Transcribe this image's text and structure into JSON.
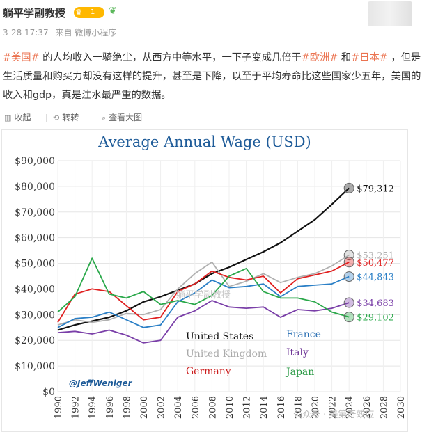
{
  "post": {
    "username": "躺平学副教授",
    "vip_level": "1",
    "time": "3-28 17:37",
    "source": "来自 微博小程序",
    "text_segments": [
      {
        "text": "#美国#",
        "type": "tag"
      },
      {
        "text": " 的人均收入一骑绝尘，从西方中等水平，一下子变成几倍于",
        "type": "plain"
      },
      {
        "text": "#欧洲#",
        "type": "tag"
      },
      {
        "text": " 和",
        "type": "plain"
      },
      {
        "text": "#日本#",
        "type": "tag"
      },
      {
        "text": " ，但是生活质量和购买力却没有这样的提升，甚至是下降，以至于平均寿命比这些国家少五年，美国的收入和gdp，真是注水最严重的数据。",
        "type": "plain"
      }
    ]
  },
  "actions": {
    "collapse": "收起",
    "repost": "转转",
    "view_large": "查看大图"
  },
  "icons": {
    "collapse": "collapse-icon",
    "repost": "repost-icon",
    "view_large": "view-large-icon",
    "sprout": "sprout-icon",
    "crown": "crown-icon"
  },
  "watermarks": {
    "center": "躺平学副教授",
    "bottom": "公众号 · 美第奇效应"
  },
  "chart_data": {
    "type": "line",
    "title": "Average Annual Wage (USD)",
    "credit": "@JeffWeniger",
    "x": [
      1990,
      1992,
      1994,
      1996,
      1998,
      2000,
      2002,
      2004,
      2006,
      2008,
      2010,
      2012,
      2014,
      2016,
      2018,
      2020,
      2022,
      2024
    ],
    "xticks": [
      "1990",
      "1992",
      "1994",
      "1996",
      "1998",
      "2000",
      "2002",
      "2004",
      "2006",
      "2008",
      "2010",
      "2012",
      "2014",
      "2016",
      "2018",
      "2020",
      "2022",
      "2024",
      "2026",
      "2028",
      "2030"
    ],
    "xlim": [
      1990,
      2030
    ],
    "ylim": [
      0,
      90000
    ],
    "yticks": [
      "$0",
      "$10,000",
      "$20,000",
      "$30,000",
      "$40,000",
      "$50,000",
      "$60,000",
      "$70,000",
      "$80,000",
      "$90,000"
    ],
    "legend": [
      "United States",
      "United Kingdom",
      "Germany",
      "France",
      "Italy",
      "Japan"
    ],
    "series": [
      {
        "name": "United States",
        "color": "#111111",
        "end_label": "$79,312",
        "end_value": 79312,
        "values": [
          24000,
          26000,
          27500,
          29000,
          31500,
          35000,
          37000,
          39500,
          42000,
          46000,
          48500,
          51500,
          54500,
          58000,
          62500,
          67000,
          73000,
          79312
        ]
      },
      {
        "name": "United Kingdom",
        "color": "#b0b0b0",
        "end_label": "$53,251",
        "end_value": 53251,
        "values": [
          26000,
          28000,
          27000,
          28000,
          30500,
          30000,
          32000,
          40000,
          46000,
          50500,
          41000,
          43000,
          46000,
          42500,
          44500,
          46000,
          49000,
          53251
        ]
      },
      {
        "name": "Germany",
        "color": "#e02020",
        "end_label": "$50,477",
        "end_value": 50477,
        "values": [
          27000,
          38000,
          40000,
          39000,
          33500,
          28000,
          29000,
          39000,
          42000,
          47000,
          44500,
          43500,
          45000,
          38500,
          44000,
          45500,
          47000,
          50477
        ]
      },
      {
        "name": "France",
        "color": "#2a7fc6",
        "end_label": "$44,843",
        "end_value": 44843,
        "values": [
          25000,
          28500,
          29000,
          31000,
          28000,
          25000,
          26000,
          35000,
          38500,
          43500,
          40500,
          41000,
          42000,
          37000,
          41000,
          41500,
          42000,
          44843
        ]
      },
      {
        "name": "Italy",
        "color": "#7a3fa8",
        "end_label": "$34,683",
        "end_value": 34683,
        "values": [
          23000,
          23500,
          22500,
          24000,
          22000,
          19000,
          20000,
          29000,
          31500,
          35500,
          33000,
          32500,
          33000,
          29000,
          32000,
          31500,
          32500,
          34683
        ]
      },
      {
        "name": "Japan",
        "color": "#2aa84a",
        "end_label": "$29,102",
        "end_value": 29102,
        "values": [
          31000,
          37000,
          52000,
          38000,
          36500,
          39000,
          34000,
          35500,
          34000,
          37500,
          45000,
          48000,
          39000,
          36500,
          36500,
          35000,
          31000,
          29102
        ]
      }
    ]
  }
}
